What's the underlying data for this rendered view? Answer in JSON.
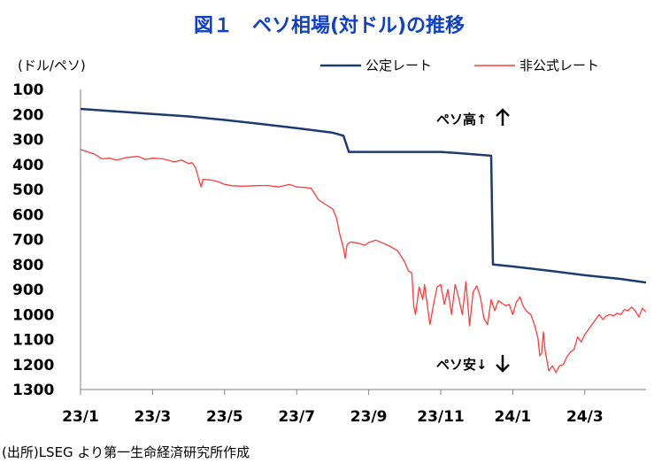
{
  "title": "図１　ペソ相場(対ドル)の推移",
  "source": "(出所)LSEG より第一生命経済研究所作成",
  "chart_data": {
    "type": "line",
    "ylabel": "(ドル/ペソ)",
    "ylim": [
      100,
      1300
    ],
    "y_inverted": true,
    "y_ticks": [
      100,
      200,
      300,
      400,
      500,
      600,
      700,
      800,
      900,
      1000,
      1100,
      1200,
      1300
    ],
    "x_ticks": [
      "23/1",
      "23/3",
      "23/5",
      "23/7",
      "23/9",
      "23/11",
      "24/1",
      "24/3"
    ],
    "x_range_months": [
      0,
      15.7
    ],
    "legend_position": "top-right",
    "annotations": {
      "up": "ペソ高↑",
      "down": "ペソ安↓"
    },
    "series": [
      {
        "name": "公定レート",
        "color": "#1f3a6e",
        "points": [
          [
            0,
            178
          ],
          [
            1,
            188
          ],
          [
            2,
            198
          ],
          [
            3,
            208
          ],
          [
            4,
            222
          ],
          [
            5,
            238
          ],
          [
            6,
            255
          ],
          [
            7,
            273
          ],
          [
            7.3,
            285
          ],
          [
            7.45,
            350
          ],
          [
            8,
            350
          ],
          [
            9,
            350
          ],
          [
            10,
            350
          ],
          [
            10.5,
            355
          ],
          [
            11.4,
            365
          ],
          [
            11.45,
            800
          ],
          [
            12,
            808
          ],
          [
            13,
            825
          ],
          [
            14,
            843
          ],
          [
            15,
            858
          ],
          [
            15.7,
            872
          ]
        ]
      },
      {
        "name": "非公式レート",
        "color": "#ff3b3b",
        "points": [
          [
            0,
            340
          ],
          [
            0.2,
            350
          ],
          [
            0.4,
            360
          ],
          [
            0.6,
            378
          ],
          [
            0.8,
            375
          ],
          [
            1,
            382
          ],
          [
            1.3,
            372
          ],
          [
            1.6,
            368
          ],
          [
            1.8,
            380
          ],
          [
            2,
            375
          ],
          [
            2.3,
            378
          ],
          [
            2.6,
            390
          ],
          [
            2.8,
            383
          ],
          [
            3,
            396
          ],
          [
            3.1,
            393
          ],
          [
            3.2,
            415
          ],
          [
            3.3,
            468
          ],
          [
            3.35,
            490
          ],
          [
            3.4,
            460
          ],
          [
            3.6,
            462
          ],
          [
            3.8,
            468
          ],
          [
            4,
            480
          ],
          [
            4.2,
            485
          ],
          [
            4.5,
            487
          ],
          [
            4.8,
            485
          ],
          [
            5.2,
            484
          ],
          [
            5.5,
            490
          ],
          [
            5.8,
            480
          ],
          [
            6,
            490
          ],
          [
            6.2,
            492
          ],
          [
            6.4,
            495
          ],
          [
            6.6,
            540
          ],
          [
            6.8,
            560
          ],
          [
            7,
            578
          ],
          [
            7.1,
            612
          ],
          [
            7.2,
            680
          ],
          [
            7.3,
            735
          ],
          [
            7.35,
            775
          ],
          [
            7.4,
            720
          ],
          [
            7.5,
            710
          ],
          [
            7.7,
            715
          ],
          [
            7.9,
            723
          ],
          [
            8,
            712
          ],
          [
            8.2,
            703
          ],
          [
            8.4,
            715
          ],
          [
            8.6,
            728
          ],
          [
            8.8,
            745
          ],
          [
            9,
            790
          ],
          [
            9.1,
            825
          ],
          [
            9.2,
            835
          ],
          [
            9.25,
            965
          ],
          [
            9.3,
            1000
          ],
          [
            9.4,
            890
          ],
          [
            9.5,
            940
          ],
          [
            9.55,
            880
          ],
          [
            9.7,
            1040
          ],
          [
            9.8,
            960
          ],
          [
            9.9,
            890
          ],
          [
            10,
            880
          ],
          [
            10.1,
            960
          ],
          [
            10.2,
            900
          ],
          [
            10.3,
            1000
          ],
          [
            10.4,
            880
          ],
          [
            10.5,
            935
          ],
          [
            10.6,
            1000
          ],
          [
            10.7,
            870
          ],
          [
            10.8,
            1045
          ],
          [
            10.9,
            910
          ],
          [
            11,
            885
          ],
          [
            11.1,
            930
          ],
          [
            11.2,
            1015
          ],
          [
            11.3,
            1040
          ],
          [
            11.4,
            940
          ],
          [
            11.5,
            985
          ],
          [
            11.6,
            945
          ],
          [
            11.7,
            955
          ],
          [
            11.8,
            965
          ],
          [
            11.9,
            960
          ],
          [
            12,
            1000
          ],
          [
            12.1,
            950
          ],
          [
            12.2,
            930
          ],
          [
            12.3,
            970
          ],
          [
            12.4,
            990
          ],
          [
            12.5,
            1000
          ],
          [
            12.6,
            1040
          ],
          [
            12.7,
            1095
          ],
          [
            12.75,
            1165
          ],
          [
            12.8,
            1155
          ],
          [
            12.85,
            1070
          ],
          [
            12.9,
            1145
          ],
          [
            13,
            1225
          ],
          [
            13.1,
            1205
          ],
          [
            13.2,
            1232
          ],
          [
            13.3,
            1205
          ],
          [
            13.4,
            1200
          ],
          [
            13.5,
            1170
          ],
          [
            13.6,
            1150
          ],
          [
            13.7,
            1140
          ],
          [
            13.8,
            1090
          ],
          [
            13.9,
            1110
          ],
          [
            14,
            1080
          ],
          [
            14.1,
            1060
          ],
          [
            14.2,
            1040
          ],
          [
            14.3,
            1020
          ],
          [
            14.4,
            1000
          ],
          [
            14.5,
            1020
          ],
          [
            14.6,
            1005
          ],
          [
            14.7,
            1000
          ],
          [
            14.8,
            1005
          ],
          [
            14.9,
            995
          ],
          [
            15,
            1000
          ],
          [
            15.1,
            980
          ],
          [
            15.2,
            985
          ],
          [
            15.3,
            970
          ],
          [
            15.4,
            985
          ],
          [
            15.5,
            1010
          ],
          [
            15.6,
            975
          ],
          [
            15.7,
            990
          ]
        ]
      }
    ]
  }
}
